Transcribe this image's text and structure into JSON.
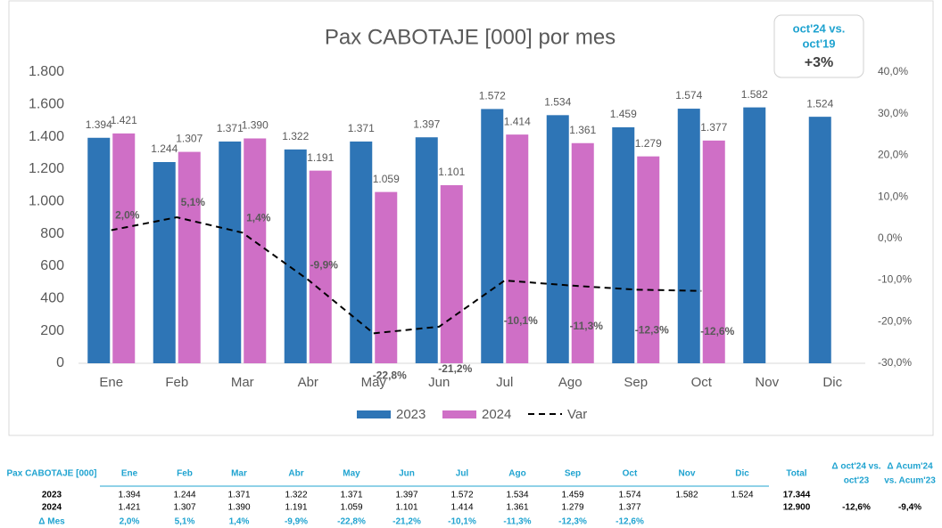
{
  "chart_data": {
    "type": "bar",
    "title": "Pax CABOTAJE [000] por mes",
    "annotations": [
      "oct'24 vs.",
      "oct'19",
      "+3%"
    ],
    "categories": [
      "Ene",
      "Feb",
      "Mar",
      "Abr",
      "May",
      "Jun",
      "Jul",
      "Ago",
      "Sep",
      "Oct",
      "Nov",
      "Dic"
    ],
    "series": [
      {
        "name": "2023",
        "type": "bar",
        "color": "#2e75b6",
        "values": [
          1394,
          1244,
          1371,
          1322,
          1371,
          1397,
          1572,
          1534,
          1459,
          1574,
          1582,
          1524
        ],
        "value_labels": [
          "1.394",
          "1.244",
          "1.371",
          "1.322",
          "1.371",
          "1.397",
          "1.572",
          "1.534",
          "1.459",
          "1.574",
          "1.582",
          "1.524"
        ]
      },
      {
        "name": "2024",
        "type": "bar",
        "color": "#cf6fc6",
        "values": [
          1421,
          1307,
          1390,
          1191,
          1059,
          1101,
          1414,
          1361,
          1279,
          1377,
          null,
          null
        ],
        "value_labels": [
          "1.421",
          "1.307",
          "1.390",
          "1.191",
          "1.059",
          "1.101",
          "1.414",
          "1.361",
          "1.279",
          "1.377",
          null,
          null
        ]
      },
      {
        "name": "Var",
        "type": "line",
        "axis": "y2",
        "color": "#000000",
        "dashed": true,
        "values": [
          2.0,
          5.1,
          1.4,
          -9.9,
          -22.8,
          -21.2,
          -10.1,
          -11.3,
          -12.3,
          -12.6,
          null,
          null
        ],
        "value_labels": [
          "2,0%",
          "5,1%",
          "1,4%",
          "-9,9%",
          "-22,8%",
          "-21,2%",
          "-10,1%",
          "-11,3%",
          "-12,3%",
          "-12,6%",
          null,
          null
        ]
      }
    ],
    "ylim": [
      0,
      1800
    ],
    "yticks": [
      0,
      200,
      400,
      600,
      800,
      {
        "value": 1000,
        "label": "1.000"
      },
      {
        "value": 1200,
        "label": "1.200"
      },
      {
        "value": 1400,
        "label": "1.400"
      },
      {
        "value": 1600,
        "label": "1.600"
      },
      {
        "value": 1800,
        "label": "1.800"
      }
    ],
    "y2lim": [
      -30,
      40
    ],
    "y2ticks": [
      {
        "value": -30,
        "label": "-30,0%"
      },
      {
        "value": -20,
        "label": "-20,0%"
      },
      {
        "value": -10,
        "label": "-10,0%"
      },
      {
        "value": 0,
        "label": "0,0%"
      },
      {
        "value": 10,
        "label": "10,0%"
      },
      {
        "value": 20,
        "label": "20,0%"
      },
      {
        "value": 30,
        "label": "30,0%"
      },
      {
        "value": 40,
        "label": "40,0%"
      }
    ],
    "grid": false,
    "legend": "bottom"
  },
  "table": {
    "header": [
      "Pax CABOTAJE [000]",
      "Ene",
      "Feb",
      "Mar",
      "Abr",
      "May",
      "Jun",
      "Jul",
      "Ago",
      "Sep",
      "Oct",
      "Nov",
      "Dic",
      "Total",
      [
        "Δ oct'24 vs.",
        "oct'23"
      ],
      [
        "Δ Acum'24",
        "vs. Acum'23"
      ]
    ],
    "rows": [
      [
        "2023",
        "1.394",
        "1.244",
        "1.371",
        "1.322",
        "1.371",
        "1.397",
        "1.572",
        "1.534",
        "1.459",
        "1.574",
        "1.582",
        "1.524",
        "17.344"
      ],
      [
        "2024",
        "1.421",
        "1.307",
        "1.390",
        "1.191",
        "1.059",
        "1.101",
        "1.414",
        "1.361",
        "1.279",
        "1.377",
        null,
        null,
        "12.900",
        "-12,6%",
        "-9,4%"
      ],
      [
        "Δ Mes",
        "2,0%",
        "5,1%",
        "1,4%",
        "-9,9%",
        "-22,8%",
        "-21,2%",
        "-10,1%",
        "-11,3%",
        "-12,3%",
        "-12,6%"
      ]
    ]
  }
}
